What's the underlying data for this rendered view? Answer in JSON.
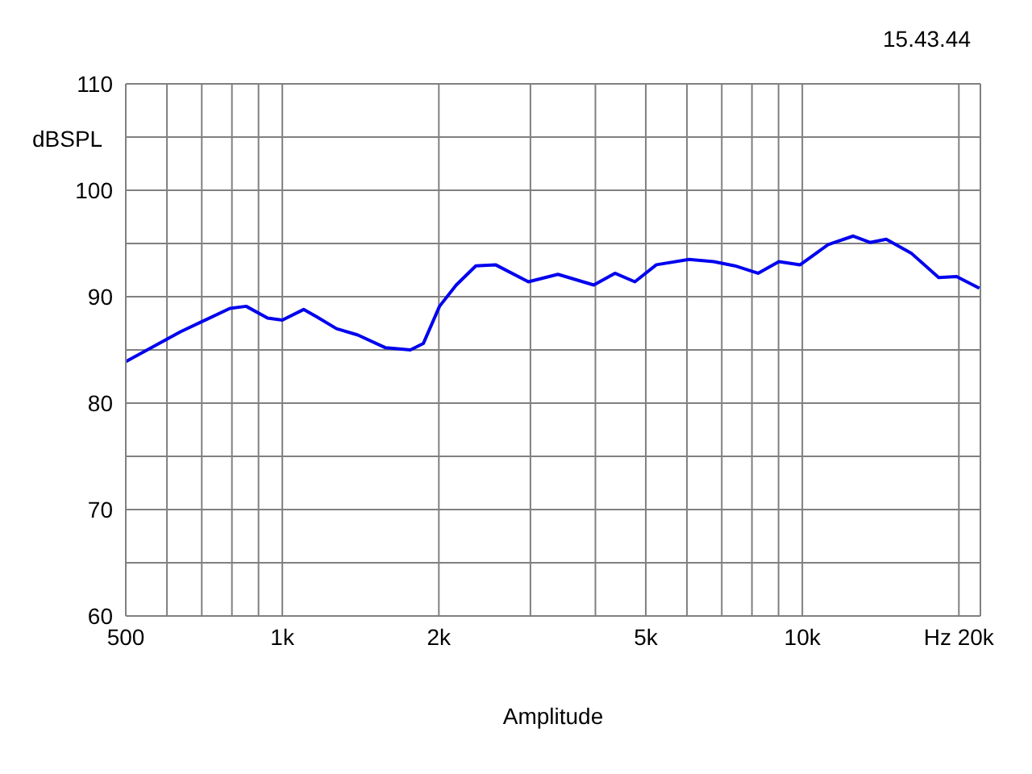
{
  "chart_data": {
    "type": "line",
    "xlabel": "Amplitude",
    "ylabel": "dBSPL",
    "annotations": [
      "15.43.44"
    ],
    "log": "x",
    "grid": true,
    "marker": "none",
    "line_style": "solid",
    "xlim": [
      500,
      22000
    ],
    "xticks": [
      500,
      {
        "value": 600,
        "label": null
      },
      {
        "value": 700,
        "label": null
      },
      {
        "value": 800,
        "label": null
      },
      {
        "value": 900,
        "label": null
      },
      {
        "value": 1000,
        "label": "1k"
      },
      {
        "value": 2000,
        "label": "2k"
      },
      {
        "value": 3000,
        "label": null
      },
      {
        "value": 4000,
        "label": null
      },
      {
        "value": 5000,
        "label": "5k"
      },
      {
        "value": 6000,
        "label": null
      },
      {
        "value": 7000,
        "label": null
      },
      {
        "value": 8000,
        "label": null
      },
      {
        "value": 9000,
        "label": null
      },
      {
        "value": 10000,
        "label": "10k"
      },
      {
        "value": 20000,
        "label": "Hz 20k"
      }
    ],
    "ylim": [
      60,
      110
    ],
    "yticks": [
      60,
      {
        "value": 65,
        "label": null
      },
      70,
      {
        "value": 75,
        "label": null
      },
      80,
      {
        "value": 85,
        "label": null
      },
      90,
      {
        "value": 95,
        "label": null
      },
      100,
      {
        "value": 105,
        "label": null
      },
      110
    ],
    "x": [
      500,
      637,
      793,
      852,
      937,
      1000,
      1099,
      1165,
      1271,
      1397,
      1580,
      1763,
      1867,
      2006,
      2160,
      2356,
      2570,
      2973,
      3389,
      3971,
      4362,
      4764,
      5240,
      6055,
      6755,
      7417,
      8219,
      9014,
      9904,
      11210,
      12530,
      13490,
      14500,
      16190,
      18290,
      19800,
      21900
    ],
    "series": [
      {
        "color": "#0000ee",
        "values": [
          83.9,
          86.7,
          88.9,
          89.1,
          88.0,
          87.8,
          88.8,
          88.1,
          87.0,
          86.4,
          85.2,
          85.0,
          85.6,
          89.1,
          91.1,
          92.9,
          93.0,
          91.4,
          92.1,
          91.1,
          92.2,
          91.4,
          93.0,
          93.5,
          93.3,
          92.9,
          92.2,
          93.3,
          93.0,
          94.9,
          95.7,
          95.1,
          95.4,
          94.1,
          91.8,
          91.9,
          90.8
        ]
      }
    ]
  }
}
